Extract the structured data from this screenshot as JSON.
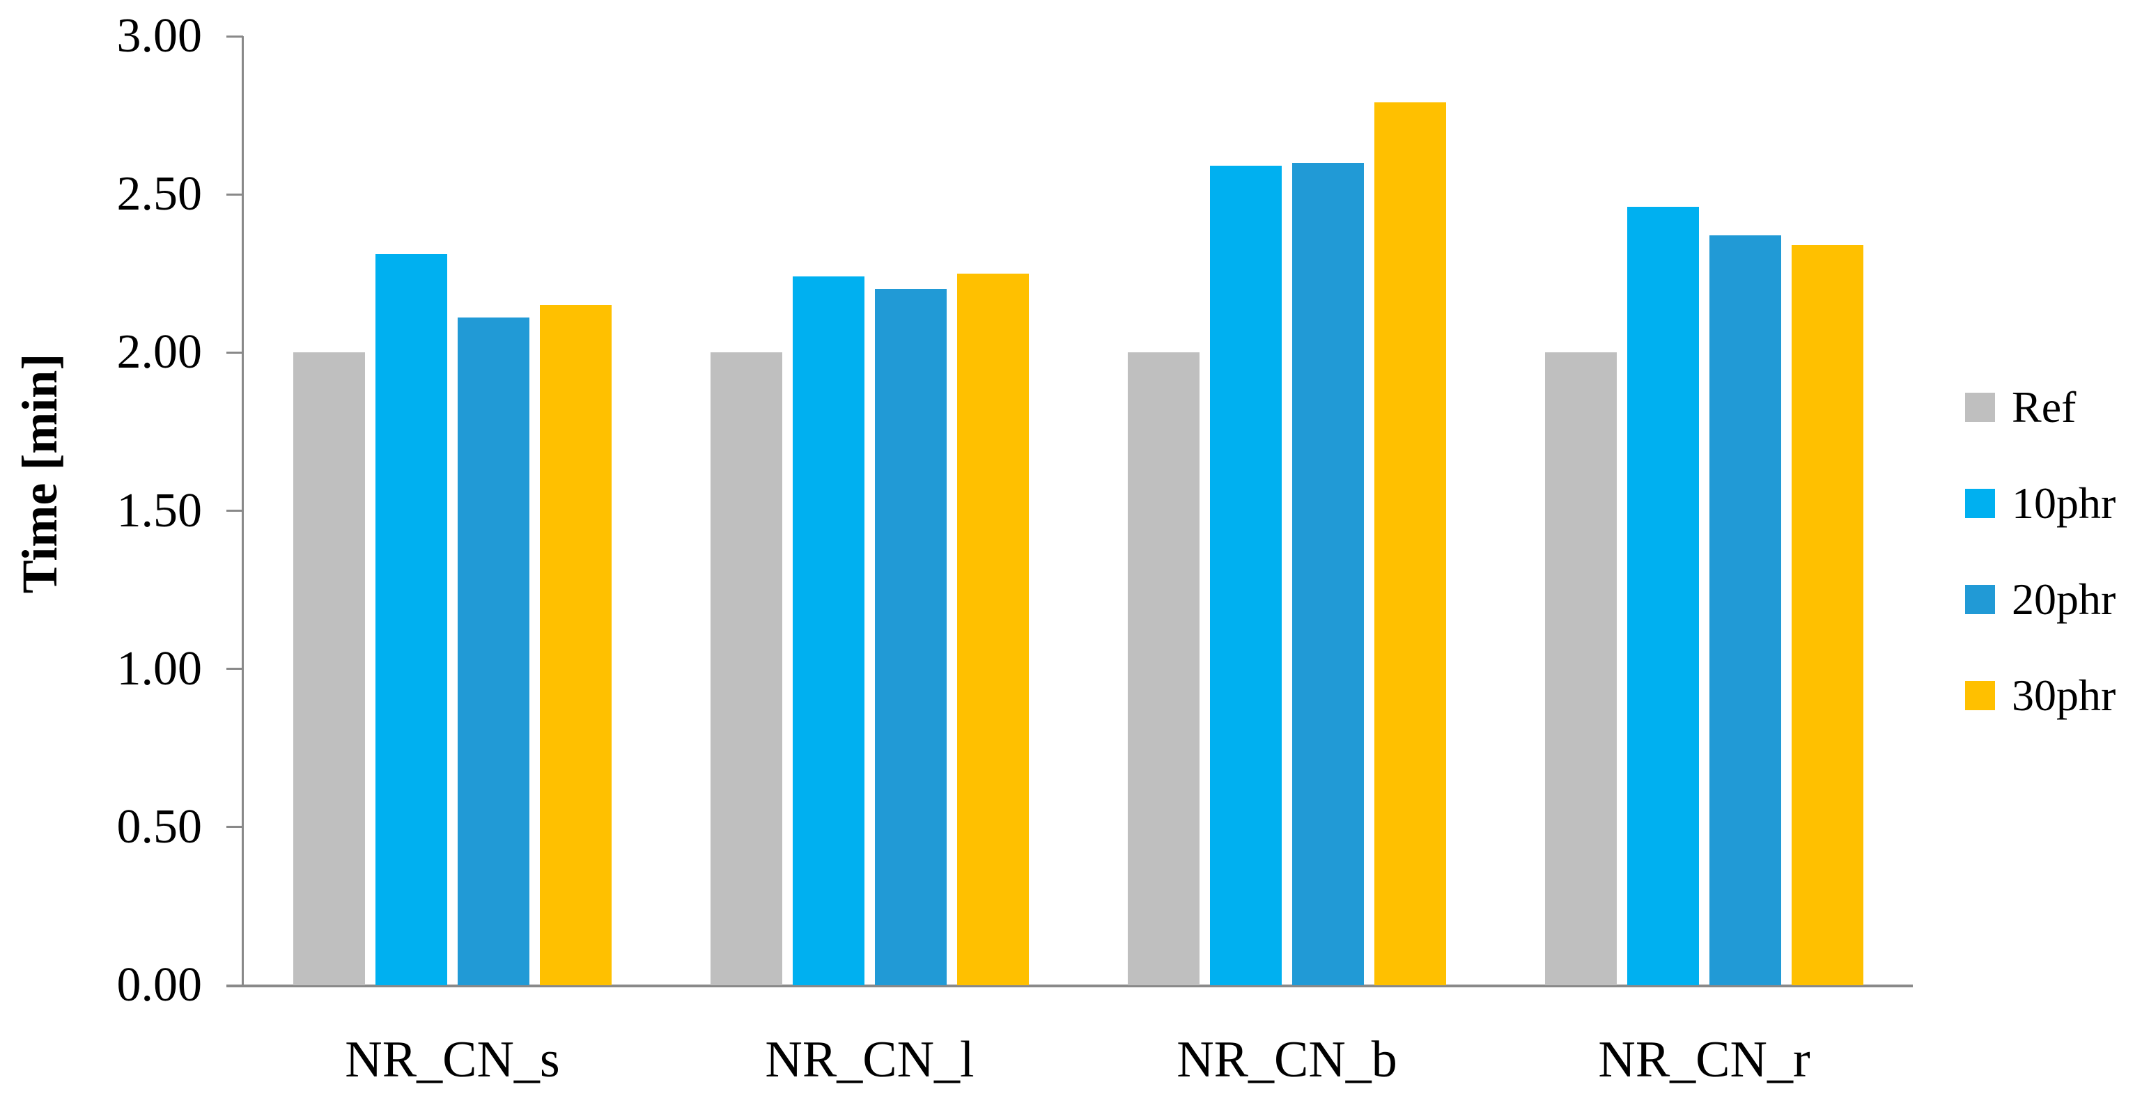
{
  "chart_data": {
    "type": "bar",
    "title": "",
    "xlabel": "",
    "ylabel": "Time [min]",
    "ylim": [
      0.0,
      3.0
    ],
    "ytick_step": 0.5,
    "ytick_labels": [
      "0.00",
      "0.50",
      "1.00",
      "1.50",
      "2.00",
      "2.50",
      "3.00"
    ],
    "categories": [
      "NR_CN_s",
      "NR_CN_l",
      "NR_CN_b",
      "NR_CN_r"
    ],
    "series": [
      {
        "name": "Ref",
        "color": "#BFBFBF",
        "values": [
          2.0,
          2.0,
          2.0,
          2.0
        ]
      },
      {
        "name": "10phr",
        "color": "#00B0F0",
        "values": [
          2.31,
          2.24,
          2.59,
          2.46
        ]
      },
      {
        "name": "20phr",
        "color": "#219AD6",
        "values": [
          2.11,
          2.2,
          2.6,
          2.37
        ]
      },
      {
        "name": "30phr",
        "color": "#FFC000",
        "values": [
          2.15,
          2.25,
          2.79,
          2.34
        ]
      }
    ],
    "legend": {
      "position": "right",
      "labels": [
        "Ref",
        "10phr",
        "20phr",
        "30phr"
      ]
    },
    "grid": false,
    "axis_color": "#898989"
  }
}
